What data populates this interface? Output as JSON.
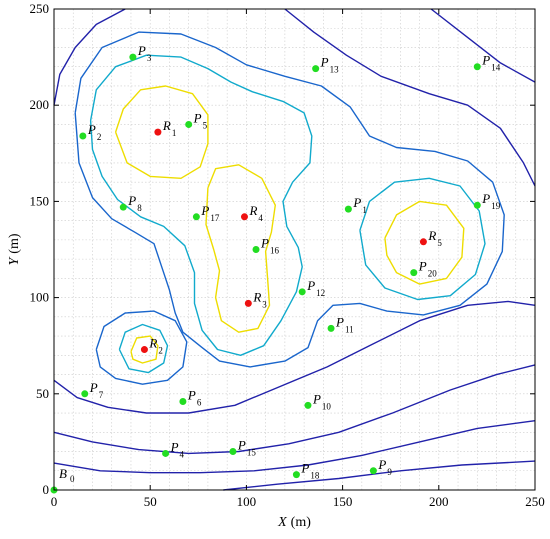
{
  "chart_data": {
    "type": "scatter",
    "title": "",
    "xlabel": "X (m)",
    "ylabel": "Y (m)",
    "xlabel_var": "X",
    "xlabel_unit": "(m)",
    "ylabel_var": "Y",
    "ylabel_unit": "(m)",
    "xlim": [
      0,
      250
    ],
    "ylim": [
      0,
      250
    ],
    "xticks": [
      0,
      50,
      100,
      150,
      200,
      250
    ],
    "yticks": [
      0,
      50,
      100,
      150,
      200,
      250
    ],
    "grid": true,
    "colors": {
      "sensor": "#22dd22",
      "relay": "#ee1111",
      "contour_outer": "#2222aa",
      "contour_mid": "#1a66cc",
      "contour_inner": "#11aacc",
      "contour_peak": "#eedd00",
      "grid": "#cccccc"
    },
    "series": [
      {
        "role": "sensor",
        "points": [
          {
            "letter": "P",
            "sub": "1",
            "x": 153,
            "y": 146
          },
          {
            "letter": "P",
            "sub": "2",
            "x": 15,
            "y": 184
          },
          {
            "letter": "P",
            "sub": "3",
            "x": 41,
            "y": 225
          },
          {
            "letter": "P",
            "sub": "4",
            "x": 58,
            "y": 19
          },
          {
            "letter": "P",
            "sub": "5",
            "x": 70,
            "y": 190
          },
          {
            "letter": "P",
            "sub": "6",
            "x": 67,
            "y": 46
          },
          {
            "letter": "P",
            "sub": "7",
            "x": 16,
            "y": 50
          },
          {
            "letter": "P",
            "sub": "8",
            "x": 36,
            "y": 147
          },
          {
            "letter": "P",
            "sub": "9",
            "x": 166,
            "y": 10
          },
          {
            "letter": "P",
            "sub": "10",
            "x": 132,
            "y": 44
          },
          {
            "letter": "P",
            "sub": "11",
            "x": 144,
            "y": 84
          },
          {
            "letter": "P",
            "sub": "12",
            "x": 129,
            "y": 103
          },
          {
            "letter": "P",
            "sub": "13",
            "x": 136,
            "y": 219
          },
          {
            "letter": "P",
            "sub": "14",
            "x": 220,
            "y": 220
          },
          {
            "letter": "P",
            "sub": "15",
            "x": 93,
            "y": 20
          },
          {
            "letter": "P",
            "sub": "16",
            "x": 105,
            "y": 125
          },
          {
            "letter": "P",
            "sub": "17",
            "x": 74,
            "y": 142
          },
          {
            "letter": "P",
            "sub": "18",
            "x": 126,
            "y": 8
          },
          {
            "letter": "P",
            "sub": "19",
            "x": 220,
            "y": 148
          },
          {
            "letter": "P",
            "sub": "20",
            "x": 187,
            "y": 113
          }
        ]
      },
      {
        "role": "relay",
        "points": [
          {
            "letter": "R",
            "sub": "1",
            "x": 54,
            "y": 186
          },
          {
            "letter": "R",
            "sub": "2",
            "x": 47,
            "y": 73
          },
          {
            "letter": "R",
            "sub": "3",
            "x": 101,
            "y": 97
          },
          {
            "letter": "R",
            "sub": "4",
            "x": 99,
            "y": 142
          },
          {
            "letter": "R",
            "sub": "5",
            "x": 192,
            "y": 129
          }
        ]
      },
      {
        "role": "base",
        "points": [
          {
            "letter": "B",
            "sub": "0",
            "x": 0,
            "y": 0
          }
        ]
      }
    ],
    "contours": [
      {
        "level": "peak",
        "color": "#eedd00",
        "paths": [
          [
            [
              32,
              186
            ],
            [
              36,
              198
            ],
            [
              45,
              208
            ],
            [
              58,
              210
            ],
            [
              72,
              206
            ],
            [
              80,
              195
            ],
            [
              80,
              180
            ],
            [
              76,
              168
            ],
            [
              66,
              162
            ],
            [
              50,
              163
            ],
            [
              38,
              170
            ],
            [
              32,
              186
            ]
          ],
          [
            [
              80,
              157
            ],
            [
              84,
              167
            ],
            [
              96,
              169
            ],
            [
              108,
              162
            ],
            [
              115,
              148
            ],
            [
              113,
              134
            ],
            [
              110,
              124
            ],
            [
              111,
              110
            ],
            [
              112,
              96
            ],
            [
              106,
              84
            ],
            [
              96,
              82
            ],
            [
              87,
              88
            ],
            [
              84,
              100
            ],
            [
              86,
              114
            ],
            [
              83,
              125
            ],
            [
              79,
              138
            ],
            [
              80,
              157
            ]
          ],
          [
            [
              40,
              72
            ],
            [
              43,
              79
            ],
            [
              50,
              80
            ],
            [
              54,
              75
            ],
            [
              53,
              68
            ],
            [
              46,
              66
            ],
            [
              41,
              68
            ],
            [
              40,
              72
            ]
          ],
          [
            [
              172,
              131
            ],
            [
              178,
              143
            ],
            [
              190,
              150
            ],
            [
              204,
              148
            ],
            [
              213,
              136
            ],
            [
              212,
              121
            ],
            [
              204,
              110
            ],
            [
              190,
              107
            ],
            [
              178,
              113
            ],
            [
              173,
              122
            ],
            [
              172,
              131
            ]
          ]
        ]
      },
      {
        "level": "inner",
        "color": "#11aacc",
        "paths": [
          [
            [
              19,
              192
            ],
            [
              22,
              208
            ],
            [
              32,
              220
            ],
            [
              48,
              226
            ],
            [
              66,
              225
            ],
            [
              80,
              219
            ],
            [
              92,
              212
            ],
            [
              103,
              207
            ],
            [
              119,
              202
            ],
            [
              130,
              196
            ],
            [
              134,
              184
            ],
            [
              133,
              170
            ],
            [
              124,
              160
            ],
            [
              119,
              150
            ],
            [
              121,
              137
            ],
            [
              127,
              126
            ],
            [
              129,
              116
            ],
            [
              126,
              103
            ],
            [
              118,
              88
            ],
            [
              109,
              75
            ],
            [
              97,
              70
            ],
            [
              85,
              73
            ],
            [
              77,
              83
            ],
            [
              73,
              97
            ],
            [
              73,
              113
            ],
            [
              68,
              127
            ],
            [
              57,
              137
            ],
            [
              45,
              142
            ],
            [
              33,
              151
            ],
            [
              25,
              163
            ],
            [
              20,
              177
            ],
            [
              19,
              192
            ]
          ],
          [
            [
              34,
              73
            ],
            [
              37,
              82
            ],
            [
              46,
              86
            ],
            [
              55,
              83
            ],
            [
              59,
              75
            ],
            [
              57,
              66
            ],
            [
              49,
              61
            ],
            [
              39,
              63
            ],
            [
              34,
              73
            ]
          ],
          [
            [
              159,
              135
            ],
            [
              164,
              150
            ],
            [
              177,
              160
            ],
            [
              195,
              162
            ],
            [
              211,
              158
            ],
            [
              221,
              145
            ],
            [
              224,
              128
            ],
            [
              219,
              112
            ],
            [
              206,
              101
            ],
            [
              189,
              99
            ],
            [
              172,
              105
            ],
            [
              162,
              117
            ],
            [
              159,
              135
            ]
          ]
        ]
      },
      {
        "level": "mid",
        "color": "#1a66cc",
        "paths": [
          [
            [
              11,
              196
            ],
            [
              14,
              214
            ],
            [
              25,
              230
            ],
            [
              44,
              238
            ],
            [
              66,
              237
            ],
            [
              84,
              230
            ],
            [
              100,
              221
            ],
            [
              120,
              215
            ],
            [
              139,
              210
            ],
            [
              154,
              199
            ],
            [
              164,
              184
            ],
            [
              178,
              178
            ],
            [
              198,
              176
            ],
            [
              215,
              171
            ],
            [
              228,
              160
            ],
            [
              234,
              143
            ],
            [
              233,
              124
            ],
            [
              225,
              107
            ],
            [
              211,
              96
            ],
            [
              192,
              91
            ],
            [
              173,
              93
            ],
            [
              159,
              97
            ],
            [
              145,
              96
            ],
            [
              137,
              88
            ],
            [
              132,
              74
            ],
            [
              120,
              67
            ],
            [
              102,
              64
            ],
            [
              86,
              67
            ],
            [
              77,
              74
            ],
            [
              67,
              82
            ],
            [
              63,
              92
            ],
            [
              60,
              104
            ],
            [
              56,
              116
            ],
            [
              52,
              128
            ],
            [
              42,
              134
            ],
            [
              30,
              141
            ],
            [
              20,
              152
            ],
            [
              13,
              170
            ],
            [
              11,
              196
            ]
          ],
          [
            [
              22,
              73
            ],
            [
              26,
              85
            ],
            [
              37,
              92
            ],
            [
              52,
              93
            ],
            [
              63,
              88
            ],
            [
              69,
              77
            ],
            [
              67,
              64
            ],
            [
              59,
              57
            ],
            [
              46,
              55
            ],
            [
              32,
              58
            ],
            [
              24,
              64
            ],
            [
              22,
              73
            ]
          ]
        ]
      },
      {
        "level": "outer",
        "color": "#2222aa",
        "paths": [
          [
            [
              0,
              200
            ],
            [
              3,
              216
            ],
            [
              11,
              230
            ],
            [
              22,
              242
            ],
            [
              37,
              250
            ]
          ],
          [
            [
              120,
              250
            ],
            [
              135,
              238
            ],
            [
              152,
              226
            ],
            [
              170,
              215
            ],
            [
              195,
              206
            ],
            [
              215,
              200
            ],
            [
              232,
              188
            ],
            [
              244,
              170
            ],
            [
              250,
              158
            ]
          ],
          [
            [
              0,
              57
            ],
            [
              12,
              48
            ],
            [
              28,
              43
            ],
            [
              48,
              40
            ],
            [
              70,
              40
            ],
            [
              94,
              44
            ],
            [
              118,
              54
            ],
            [
              142,
              64
            ],
            [
              166,
              76
            ],
            [
              190,
              88
            ],
            [
              215,
              96
            ],
            [
              236,
              98
            ],
            [
              250,
              96
            ]
          ],
          [
            [
              0,
              30
            ],
            [
              20,
              25
            ],
            [
              44,
              21
            ],
            [
              70,
              19
            ],
            [
              96,
              20
            ],
            [
              122,
              24
            ],
            [
              148,
              30
            ],
            [
              176,
              40
            ],
            [
              206,
              52
            ],
            [
              230,
              60
            ],
            [
              250,
              65
            ]
          ],
          [
            [
              0,
              14
            ],
            [
              24,
              10
            ],
            [
              50,
              9
            ],
            [
              76,
              9
            ],
            [
              104,
              10
            ],
            [
              132,
              13
            ],
            [
              160,
              18
            ],
            [
              190,
              25
            ],
            [
              220,
              32
            ],
            [
              250,
              36
            ]
          ],
          [
            [
              88,
              0
            ],
            [
              116,
              3
            ],
            [
              148,
              6
            ],
            [
              180,
              10
            ],
            [
              212,
              13
            ],
            [
              250,
              15
            ]
          ],
          [
            [
              196,
              250
            ],
            [
              214,
              236
            ],
            [
              232,
              222
            ],
            [
              250,
              212
            ]
          ]
        ]
      }
    ]
  }
}
